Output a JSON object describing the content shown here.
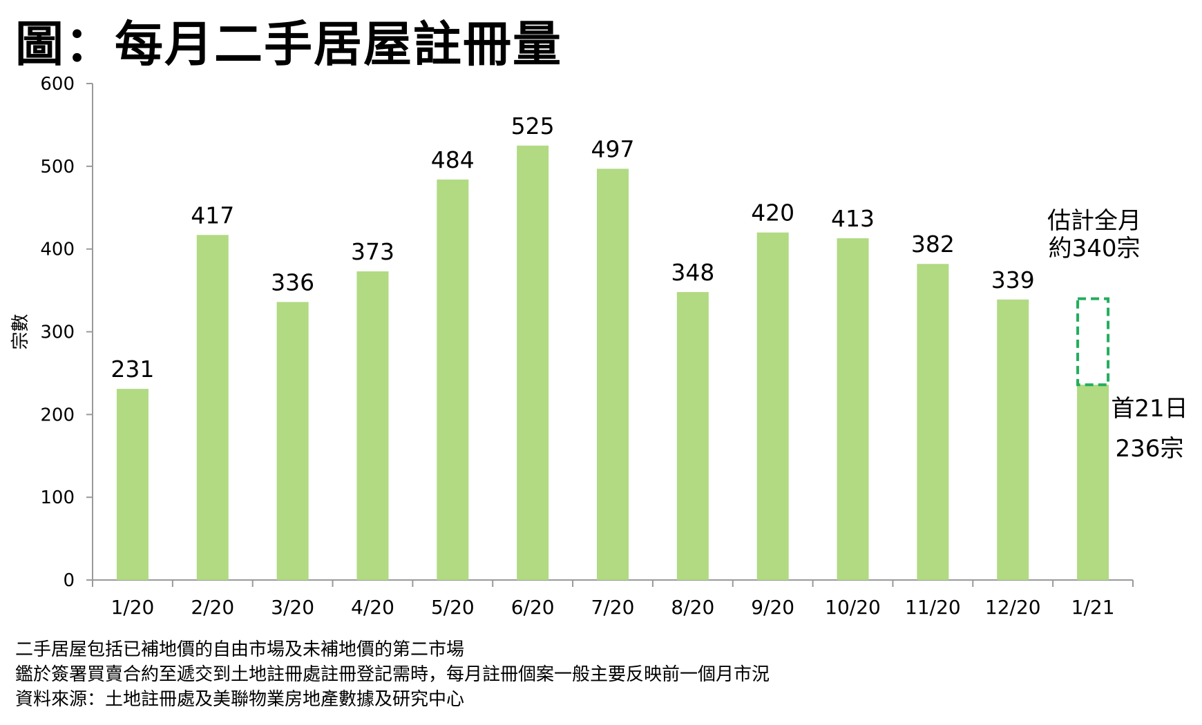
{
  "title": "圖：每月二手居屋註冊量",
  "colors": {
    "bar": "#b1da83",
    "estimate_outline": "#22ad5c",
    "axis": "#999999"
  },
  "chart_data": {
    "type": "bar",
    "title": "圖：每月二手居屋註冊量",
    "xlabel": "",
    "ylabel": "宗數",
    "ylim": [
      0,
      600
    ],
    "yticks": [
      0,
      100,
      200,
      300,
      400,
      500,
      600
    ],
    "categories": [
      "1/20",
      "2/20",
      "3/20",
      "4/20",
      "5/20",
      "6/20",
      "7/20",
      "8/20",
      "9/20",
      "10/20",
      "11/20",
      "12/20",
      "1/21"
    ],
    "values": [
      231,
      417,
      336,
      373,
      484,
      525,
      497,
      348,
      420,
      413,
      382,
      339,
      236
    ],
    "data_labels": [
      "231",
      "417",
      "336",
      "373",
      "484",
      "525",
      "497",
      "348",
      "420",
      "413",
      "382",
      "339",
      ""
    ],
    "estimate": {
      "category": "1/21",
      "value": 340,
      "label_lines": [
        "估計全月",
        "約340宗"
      ]
    },
    "last_bar_annotation": [
      "首21日",
      "236宗"
    ],
    "grid": false,
    "legend": "none"
  },
  "notes": [
    "二手居屋包括已補地價的自由市場及未補地價的第二市場",
    "鑑於簽署買賣合約至遞交到土地註冊處註冊登記需時，每月註冊個案一般主要反映前一個月市況",
    "資料來源：土地註冊處及美聯物業房地產數據及研究中心"
  ]
}
